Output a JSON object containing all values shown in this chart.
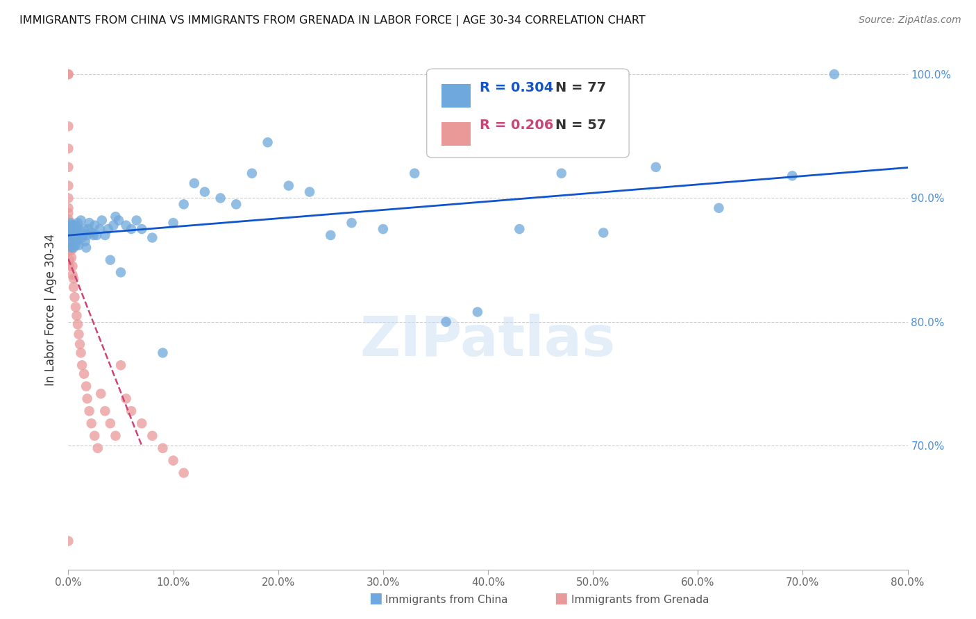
{
  "title": "IMMIGRANTS FROM CHINA VS IMMIGRANTS FROM GRENADA IN LABOR FORCE | AGE 30-34 CORRELATION CHART",
  "source": "Source: ZipAtlas.com",
  "ylabel": "In Labor Force | Age 30-34",
  "xlim": [
    0.0,
    0.8
  ],
  "ylim": [
    0.6,
    1.02
  ],
  "xticks": [
    0.0,
    0.1,
    0.2,
    0.3,
    0.4,
    0.5,
    0.6,
    0.7,
    0.8
  ],
  "yticks_right": [
    0.7,
    0.8,
    0.9,
    1.0
  ],
  "china_R": 0.304,
  "china_N": 77,
  "grenada_R": 0.206,
  "grenada_N": 57,
  "china_color": "#6fa8dc",
  "grenada_color": "#ea9999",
  "china_line_color": "#1155cc",
  "grenada_line_color": "#cc4477",
  "right_axis_color": "#4a90d9",
  "watermark": "ZIPatlas",
  "china_x": [
    0.001,
    0.001,
    0.002,
    0.002,
    0.002,
    0.003,
    0.003,
    0.003,
    0.004,
    0.004,
    0.004,
    0.005,
    0.005,
    0.005,
    0.006,
    0.006,
    0.007,
    0.007,
    0.007,
    0.008,
    0.008,
    0.009,
    0.009,
    0.01,
    0.01,
    0.011,
    0.012,
    0.013,
    0.014,
    0.015,
    0.016,
    0.017,
    0.018,
    0.019,
    0.02,
    0.022,
    0.024,
    0.025,
    0.027,
    0.03,
    0.032,
    0.035,
    0.038,
    0.04,
    0.043,
    0.045,
    0.048,
    0.05,
    0.055,
    0.06,
    0.065,
    0.07,
    0.08,
    0.09,
    0.1,
    0.11,
    0.12,
    0.13,
    0.145,
    0.16,
    0.175,
    0.19,
    0.21,
    0.23,
    0.25,
    0.27,
    0.3,
    0.33,
    0.36,
    0.39,
    0.43,
    0.47,
    0.51,
    0.56,
    0.62,
    0.69,
    0.73
  ],
  "china_y": [
    0.878,
    0.872,
    0.88,
    0.87,
    0.864,
    0.875,
    0.87,
    0.86,
    0.878,
    0.87,
    0.862,
    0.875,
    0.868,
    0.86,
    0.875,
    0.865,
    0.878,
    0.87,
    0.862,
    0.875,
    0.865,
    0.88,
    0.868,
    0.875,
    0.862,
    0.87,
    0.882,
    0.868,
    0.87,
    0.875,
    0.865,
    0.86,
    0.87,
    0.875,
    0.88,
    0.872,
    0.87,
    0.878,
    0.87,
    0.875,
    0.882,
    0.87,
    0.875,
    0.85,
    0.878,
    0.885,
    0.882,
    0.84,
    0.878,
    0.875,
    0.882,
    0.875,
    0.868,
    0.775,
    0.88,
    0.895,
    0.912,
    0.905,
    0.9,
    0.895,
    0.92,
    0.945,
    0.91,
    0.905,
    0.87,
    0.88,
    0.875,
    0.92,
    0.8,
    0.808,
    0.875,
    0.92,
    0.872,
    0.925,
    0.892,
    0.918,
    1.0
  ],
  "grenada_x": [
    0.0,
    0.0,
    0.0,
    0.0,
    0.0,
    0.0,
    0.0,
    0.0,
    0.0,
    0.0,
    0.0,
    0.0,
    0.0,
    0.0,
    0.0,
    0.001,
    0.001,
    0.001,
    0.001,
    0.001,
    0.001,
    0.002,
    0.002,
    0.002,
    0.003,
    0.003,
    0.004,
    0.004,
    0.005,
    0.005,
    0.006,
    0.007,
    0.008,
    0.009,
    0.01,
    0.011,
    0.012,
    0.013,
    0.015,
    0.017,
    0.018,
    0.02,
    0.022,
    0.025,
    0.028,
    0.031,
    0.035,
    0.04,
    0.045,
    0.05,
    0.055,
    0.06,
    0.07,
    0.08,
    0.09,
    0.1,
    0.11
  ],
  "grenada_y": [
    1.0,
    1.0,
    0.958,
    0.94,
    0.925,
    0.91,
    0.9,
    0.892,
    0.888,
    0.883,
    0.878,
    0.873,
    0.868,
    0.862,
    0.857,
    0.875,
    0.87,
    0.865,
    0.86,
    0.85,
    0.845,
    0.878,
    0.87,
    0.862,
    0.858,
    0.852,
    0.845,
    0.838,
    0.835,
    0.828,
    0.82,
    0.812,
    0.805,
    0.798,
    0.79,
    0.782,
    0.775,
    0.765,
    0.758,
    0.748,
    0.738,
    0.728,
    0.718,
    0.708,
    0.698,
    0.742,
    0.728,
    0.718,
    0.708,
    0.765,
    0.738,
    0.728,
    0.718,
    0.708,
    0.698,
    0.688,
    0.678
  ]
}
